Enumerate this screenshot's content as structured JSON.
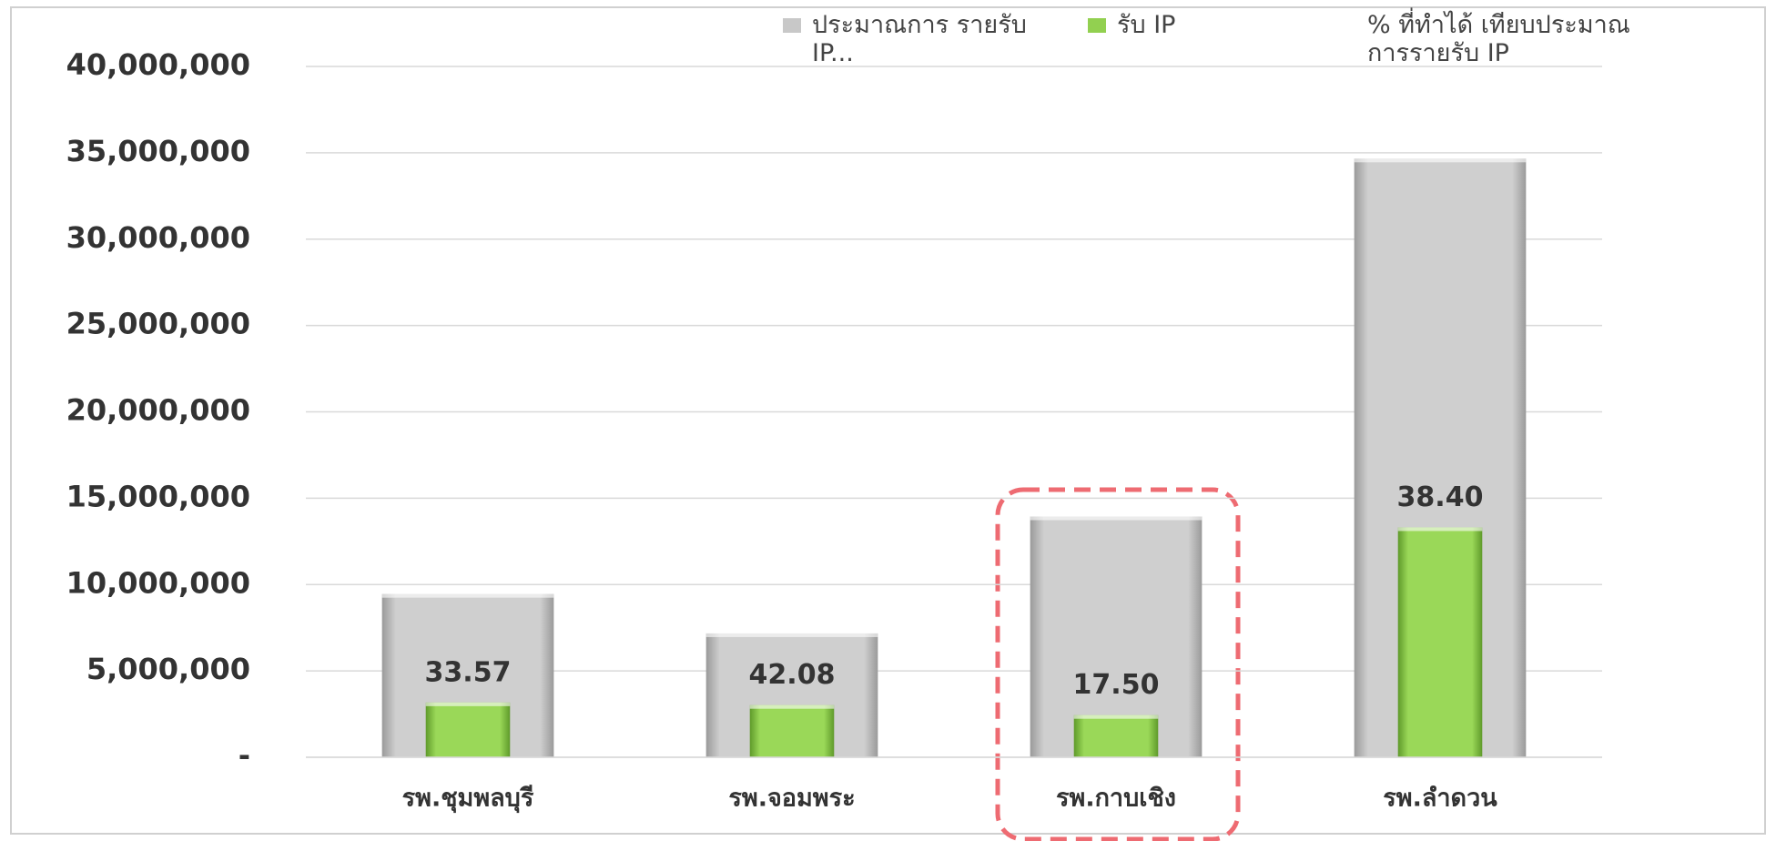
{
  "chart_data": {
    "type": "bar",
    "categories": [
      "รพ.ชุมพลบุรี",
      "รพ.จอมพระ",
      "รพ.กาบเชิง",
      "รพ.ลำดวน"
    ],
    "series": [
      {
        "name": "ประมาณการ รายรับ IP...",
        "color": "#c8c8c8",
        "values": [
          9450000,
          7170000,
          13940000,
          34660000
        ]
      },
      {
        "name": "รับ IP",
        "color": "#92d050",
        "values": [
          3170000,
          3020000,
          2440000,
          13310000
        ]
      },
      {
        "name": "% ที่ทำได้ เทียบประมาณการรายรับ IP",
        "values": [
          33.57,
          42.08,
          17.5,
          38.4
        ],
        "value_labels": [
          "33.57",
          "42.08",
          "17.50",
          "38.40"
        ]
      }
    ],
    "ylim": [
      0,
      40000000
    ],
    "yticks": [
      {
        "value": 0,
        "label": "-"
      },
      {
        "value": 5000000,
        "label": "5,000,000"
      },
      {
        "value": 10000000,
        "label": "10,000,000"
      },
      {
        "value": 15000000,
        "label": "15,000,000"
      },
      {
        "value": 20000000,
        "label": "20,000,000"
      },
      {
        "value": 25000000,
        "label": "25,000,000"
      },
      {
        "value": 30000000,
        "label": "30,000,000"
      },
      {
        "value": 35000000,
        "label": "35,000,000"
      },
      {
        "value": 40000000,
        "label": "40,000,000"
      }
    ],
    "grid": true,
    "legend": "top"
  }
}
